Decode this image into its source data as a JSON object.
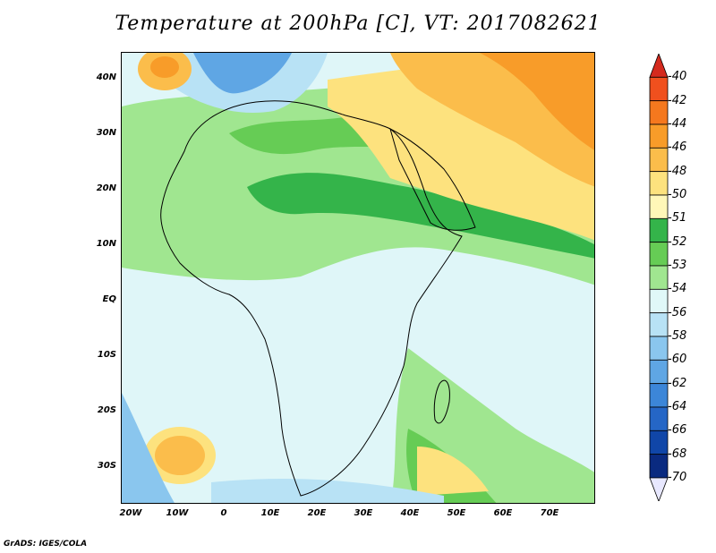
{
  "title": "Temperature at 200hPa [C], VT: 2017082621",
  "footer": "GrADS: IGES/COLA",
  "map": {
    "x_ticks": [
      "20W",
      "10W",
      "0",
      "10E",
      "20E",
      "30E",
      "40E",
      "50E",
      "60E",
      "70E"
    ],
    "y_ticks": [
      "40N",
      "30N",
      "20N",
      "10N",
      "EQ",
      "10S",
      "20S",
      "30S"
    ]
  },
  "colorbar": {
    "labels": [
      "-40",
      "-42",
      "-44",
      "-46",
      "-48",
      "-50",
      "-51",
      "-52",
      "-53",
      "-54",
      "-56",
      "-58",
      "-60",
      "-62",
      "-64",
      "-66",
      "-68",
      "-70"
    ],
    "colors": [
      "#d42a1e",
      "#f0501e",
      "#f5781e",
      "#f89c29",
      "#fbbd4b",
      "#fde27e",
      "#fff7b8",
      "#34b44a",
      "#66cc55",
      "#a0e690",
      "#e0f8f8",
      "#b8e2f5",
      "#8ac6ee",
      "#5fa6e4",
      "#3c86d8",
      "#2566c6",
      "#1046a8",
      "#0a2a80",
      "#e8e8ff"
    ]
  }
}
